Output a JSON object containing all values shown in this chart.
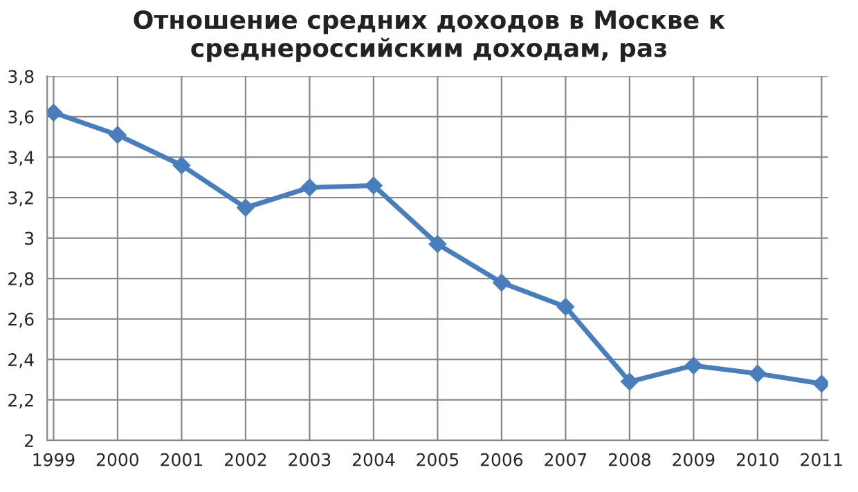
{
  "chart_data": {
    "type": "line",
    "title": "Отношение средних доходов в Москве к\nсреднероссийским доходам, раз",
    "categories": [
      "1999",
      "2000",
      "2001",
      "2002",
      "2003",
      "2004",
      "2005",
      "2006",
      "2007",
      "2008",
      "2009",
      "2010",
      "2011"
    ],
    "series": [
      {
        "color": "#4a7ebb",
        "values": [
          3.62,
          3.51,
          3.36,
          3.15,
          3.25,
          3.26,
          2.97,
          2.78,
          2.66,
          2.29,
          2.37,
          2.33,
          2.28
        ]
      }
    ],
    "ylim": [
      2,
      3.8
    ],
    "yticks": [
      2,
      {
        "value": 2.2,
        "label": "2,2"
      },
      {
        "value": 2.4,
        "label": "2,4"
      },
      {
        "value": 2.6,
        "label": "2,6"
      },
      {
        "value": 2.8,
        "label": "2,8"
      },
      3,
      {
        "value": 3.2,
        "label": "3,2"
      },
      {
        "value": 3.4,
        "label": "3,4"
      },
      {
        "value": 3.6,
        "label": "3,6"
      },
      {
        "value": 3.8,
        "label": "3,8"
      }
    ],
    "grid": true,
    "marker": "diamond",
    "line_style": "solid"
  }
}
